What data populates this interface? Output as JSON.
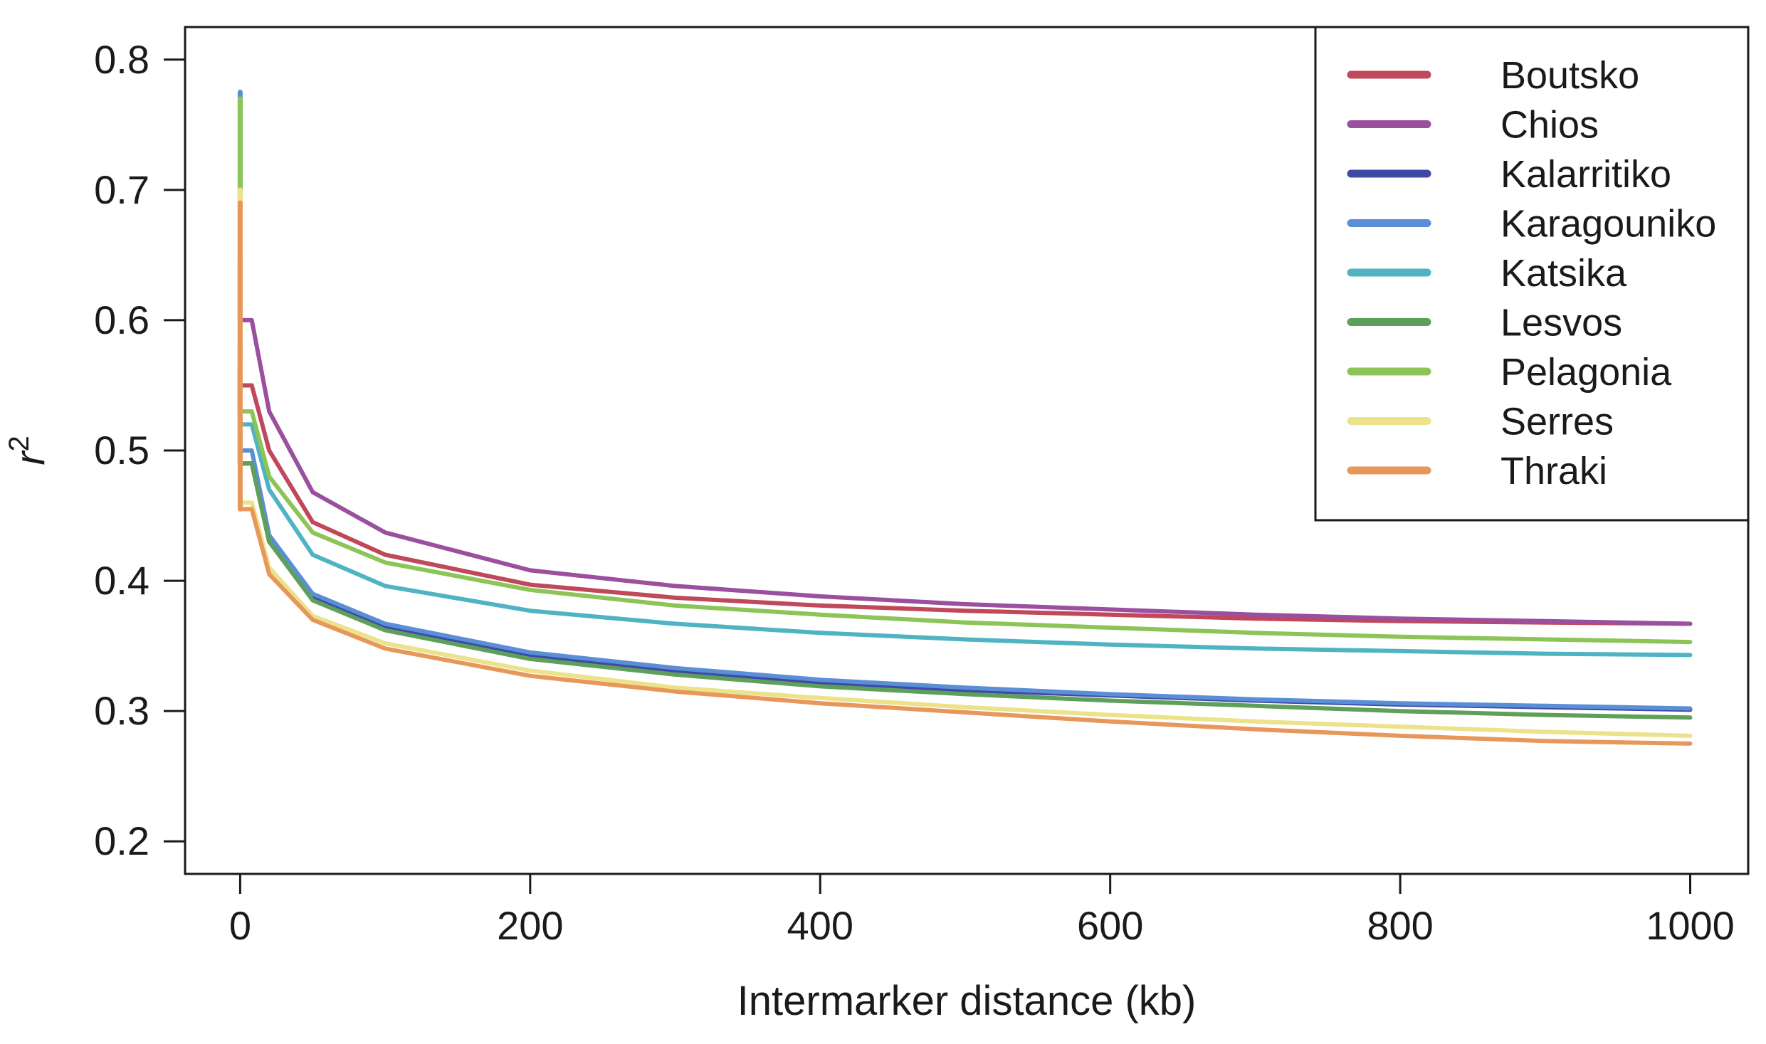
{
  "chart_data": {
    "type": "line",
    "title": "",
    "xlabel": "Intermarker distance (kb)",
    "ylabel_base": "r",
    "ylabel_sup": "2",
    "xlim": [
      -38,
      1040
    ],
    "ylim": [
      0.175,
      0.825
    ],
    "xticks": [
      0,
      200,
      400,
      600,
      800,
      1000
    ],
    "yticks": [
      0.2,
      0.3,
      0.4,
      0.5,
      0.6,
      0.7,
      0.8
    ],
    "grid": false,
    "legend_position": "top-right",
    "x": [
      8,
      20,
      50,
      100,
      200,
      300,
      400,
      500,
      600,
      700,
      800,
      900,
      1000
    ],
    "series": [
      {
        "name": "Boutsko",
        "color": "#c0485a",
        "y0": 0.58,
        "values": [
          0.55,
          0.5,
          0.445,
          0.42,
          0.397,
          0.387,
          0.381,
          0.377,
          0.374,
          0.371,
          0.369,
          0.368,
          0.367
        ]
      },
      {
        "name": "Chios",
        "color": "#9b4f9f",
        "y0": 0.645,
        "values": [
          0.6,
          0.53,
          0.468,
          0.437,
          0.408,
          0.396,
          0.388,
          0.382,
          0.378,
          0.374,
          0.371,
          0.369,
          0.367
        ]
      },
      {
        "name": "Kalarritiko",
        "color": "#3f4aa6",
        "y0": 0.56,
        "values": [
          0.49,
          0.43,
          0.388,
          0.365,
          0.343,
          0.331,
          0.322,
          0.316,
          0.312,
          0.308,
          0.305,
          0.303,
          0.301
        ]
      },
      {
        "name": "Karagouniko",
        "color": "#5a8fd8",
        "y0": 0.775,
        "values": [
          0.5,
          0.435,
          0.39,
          0.367,
          0.345,
          0.333,
          0.324,
          0.318,
          0.313,
          0.309,
          0.306,
          0.304,
          0.302
        ]
      },
      {
        "name": "Katsika",
        "color": "#4fb3c2",
        "y0": 0.57,
        "values": [
          0.52,
          0.47,
          0.42,
          0.396,
          0.377,
          0.367,
          0.36,
          0.355,
          0.351,
          0.348,
          0.346,
          0.344,
          0.343
        ]
      },
      {
        "name": "Lesvos",
        "color": "#5ea05a",
        "y0": 0.56,
        "values": [
          0.49,
          0.43,
          0.385,
          0.362,
          0.34,
          0.328,
          0.319,
          0.313,
          0.308,
          0.304,
          0.3,
          0.297,
          0.295
        ]
      },
      {
        "name": "Pelagonia",
        "color": "#8cc458",
        "y0": 0.77,
        "values": [
          0.53,
          0.48,
          0.437,
          0.414,
          0.393,
          0.381,
          0.374,
          0.368,
          0.364,
          0.36,
          0.357,
          0.355,
          0.353
        ]
      },
      {
        "name": "Serres",
        "color": "#ece28a",
        "y0": 0.7,
        "values": [
          0.46,
          0.41,
          0.373,
          0.352,
          0.331,
          0.318,
          0.31,
          0.303,
          0.297,
          0.292,
          0.288,
          0.284,
          0.281
        ]
      },
      {
        "name": "Thraki",
        "color": "#e8975a",
        "y0": 0.69,
        "values": [
          0.455,
          0.405,
          0.37,
          0.348,
          0.327,
          0.315,
          0.306,
          0.299,
          0.292,
          0.286,
          0.281,
          0.277,
          0.275
        ]
      }
    ]
  }
}
